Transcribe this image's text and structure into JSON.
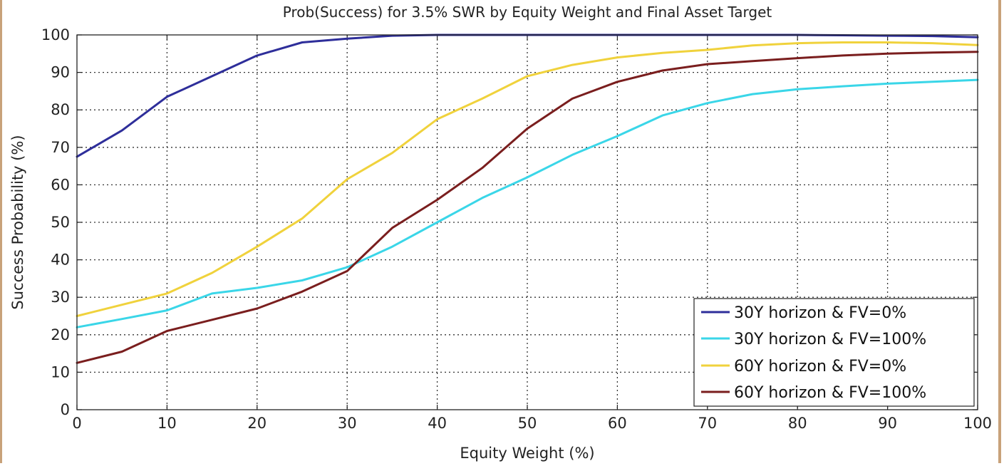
{
  "chart_data": {
    "type": "line",
    "title": "Prob(Success) for 3.5% SWR by Equity Weight and Final Asset Target",
    "xlabel": "Equity Weight (%)",
    "ylabel": "Success Probability (%)",
    "xlim": [
      0,
      100
    ],
    "ylim": [
      0,
      100
    ],
    "xticks": [
      0,
      10,
      20,
      30,
      40,
      50,
      60,
      70,
      80,
      90,
      100
    ],
    "yticks": [
      0,
      10,
      20,
      30,
      40,
      50,
      60,
      70,
      80,
      90,
      100
    ],
    "grid": true,
    "legend_position": "bottom-right",
    "x": [
      0,
      5,
      10,
      15,
      20,
      25,
      30,
      35,
      40,
      45,
      50,
      55,
      60,
      65,
      70,
      75,
      80,
      85,
      90,
      95,
      100
    ],
    "series": [
      {
        "name": "30Y horizon & FV=0%",
        "color": "#2e2e9a",
        "values": [
          67.5,
          74.5,
          83.5,
          89,
          94.5,
          98,
          99,
          99.8,
          100,
          100,
          100,
          100,
          100,
          100,
          100,
          100,
          100,
          99.9,
          99.8,
          99.7,
          99.4
        ]
      },
      {
        "name": "30Y horizon & FV=100%",
        "color": "#3ad6e8",
        "values": [
          22,
          24.2,
          26.5,
          31,
          32.5,
          34.5,
          38,
          43.5,
          50,
          56.5,
          62,
          68,
          73,
          78.5,
          81.8,
          84.2,
          85.5,
          86.3,
          87,
          87.5,
          88
        ]
      },
      {
        "name": "60Y horizon & FV=0%",
        "color": "#f0d23c",
        "values": [
          25,
          28,
          31,
          36.5,
          43.5,
          51,
          61.5,
          68.5,
          77.5,
          83,
          89,
          92,
          94,
          95.2,
          96,
          97.2,
          97.8,
          98,
          98,
          97.8,
          97.3
        ]
      },
      {
        "name": "60Y horizon & FV=100%",
        "color": "#7a1e1e",
        "values": [
          12.5,
          15.5,
          21,
          24,
          27,
          31.5,
          37,
          48.5,
          56,
          64.5,
          75,
          83,
          87.5,
          90.5,
          92.2,
          93,
          93.8,
          94.5,
          95,
          95.3,
          95.5
        ]
      }
    ]
  }
}
